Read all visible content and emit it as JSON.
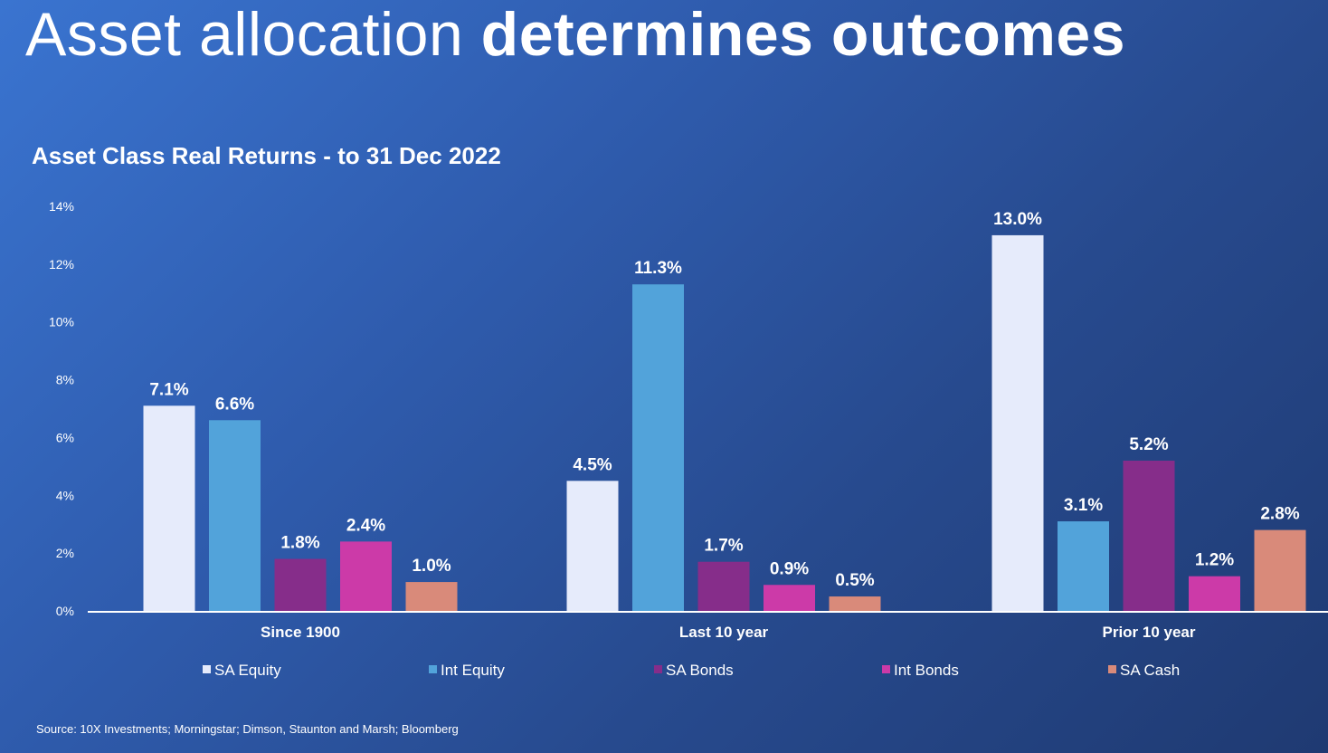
{
  "header": {
    "title_light": "Asset allocation",
    "title_bold": "determines outcomes"
  },
  "chart_data": {
    "type": "bar",
    "title": "Asset Class Real Returns - to 31 Dec 2022",
    "xlabel": "",
    "ylabel": "",
    "ylim": [
      0,
      14
    ],
    "yticks": [
      "0%",
      "2%",
      "4%",
      "6%",
      "8%",
      "10%",
      "12%",
      "14%"
    ],
    "categories": [
      "Since 1900",
      "Last 10 year",
      "Prior 10 year"
    ],
    "series": [
      {
        "name": "SA Equity",
        "color": "#e6ebfb",
        "values": [
          7.1,
          4.5,
          13.0
        ],
        "labels": [
          "7.1%",
          "4.5%",
          "13.0%"
        ]
      },
      {
        "name": "Int Equity",
        "color": "#52a3da",
        "values": [
          6.6,
          11.3,
          3.1
        ],
        "labels": [
          "6.6%",
          "11.3%",
          "3.1%"
        ]
      },
      {
        "name": "SA Bonds",
        "color": "#862d8a",
        "values": [
          1.8,
          1.7,
          5.2
        ],
        "labels": [
          "1.8%",
          "1.7%",
          "5.2%"
        ]
      },
      {
        "name": "Int Bonds",
        "color": "#cc3aa8",
        "values": [
          2.4,
          0.9,
          1.2
        ],
        "labels": [
          "2.4%",
          "0.9%",
          "1.2%"
        ]
      },
      {
        "name": "SA Cash",
        "color": "#d98a7a",
        "values": [
          1.0,
          0.5,
          2.8
        ],
        "labels": [
          "1.0%",
          "0.5%",
          "2.8%"
        ]
      }
    ],
    "legend": "bottom",
    "grid": false
  },
  "footer": {
    "source": "Source: 10X Investments; Morningstar; Dimson, Staunton and Marsh; Bloomberg"
  }
}
